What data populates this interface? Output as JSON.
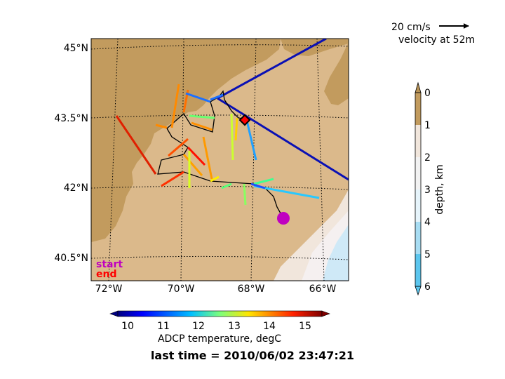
{
  "map": {
    "lat_labels": [
      "45°N",
      "43.5°N",
      "42°N",
      "40.5°N"
    ],
    "lon_labels": [
      "72°W",
      "70°W",
      "68°W",
      "66°W"
    ],
    "legend_start": "start",
    "legend_end": "end",
    "colors": {
      "land": "#c29b5e",
      "shelf": "#dbb98b",
      "depth_2km": "#f1e6dc",
      "depth_3km": "#f1f1f1",
      "depth_5km": "#cfe9f7",
      "track": "#000000",
      "ship_line": "#0a10b4",
      "start_marker": "#c000c0",
      "end_marker": "#ff0000"
    }
  },
  "scale_arrow": {
    "speed_label": "20 cm/s",
    "depth_label": "velocity at 52m"
  },
  "depth_colorbar": {
    "label": "depth, km",
    "ticks": [
      "0",
      "1",
      "2",
      "3",
      "4",
      "5",
      "6"
    ]
  },
  "temp_colorbar": {
    "label": "ADCP temperature, degC",
    "ticks": [
      "10",
      "11",
      "12",
      "13",
      "14",
      "15"
    ]
  },
  "footer": {
    "last_time": "last time = 2010/06/02 23:47:21"
  }
}
